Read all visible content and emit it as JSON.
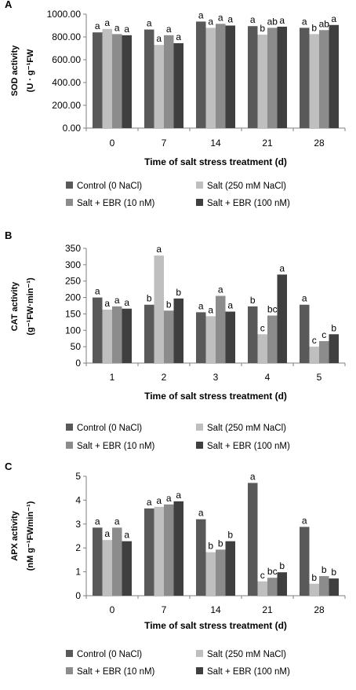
{
  "colors": {
    "control": "#595959",
    "salt": "#bfbfbf",
    "ebr10": "#8c8c8c",
    "ebr100": "#3f3f3f",
    "axis": "#7f7f7f"
  },
  "legend": [
    {
      "label": "Control (0 NaCl)",
      "color": "#595959"
    },
    {
      "label": "Salt (250 mM NaCl)",
      "color": "#bfbfbf"
    },
    {
      "label": "Salt + EBR (10 nM)",
      "color": "#8c8c8c"
    },
    {
      "label": "Salt + EBR (100 nM)",
      "color": "#3f3f3f"
    }
  ],
  "chart_data": [
    {
      "panel": "A",
      "type": "bar",
      "ylabel_line1": "SOD activity",
      "ylabel_line2": "(U · g⁻¹FW",
      "xlabel": "Time of salt stress treatment (d)",
      "categories": [
        "0",
        "7",
        "14",
        "21",
        "28"
      ],
      "ylim": [
        0,
        1000
      ],
      "yticks": [
        "0.00",
        "200.00",
        "400.00",
        "600.00",
        "800.00",
        "1000.00"
      ],
      "grid": false,
      "series": [
        {
          "name": "Control (0 NaCl)",
          "values": [
            840,
            865,
            935,
            895,
            880
          ],
          "letters": [
            "a",
            "a",
            "a",
            "a",
            "a"
          ]
        },
        {
          "name": "Salt (250 mM NaCl)",
          "values": [
            870,
            730,
            880,
            820,
            825
          ],
          "letters": [
            "a",
            "a",
            "a",
            "b",
            "b"
          ]
        },
        {
          "name": "Salt + EBR (10 nM)",
          "values": [
            825,
            815,
            915,
            880,
            860
          ],
          "letters": [
            "a",
            "a",
            "a",
            "ab",
            "ab"
          ]
        },
        {
          "name": "Salt + EBR (100 nM)",
          "values": [
            815,
            745,
            900,
            890,
            905
          ],
          "letters": [
            "a",
            "a",
            "a",
            "a",
            "a"
          ]
        }
      ]
    },
    {
      "panel": "B",
      "type": "bar",
      "ylabel_line1": "CAT activity",
      "ylabel_line2": "(g⁻¹FW·min⁻¹)",
      "xlabel": "Time of salt stress treatment (d)",
      "categories": [
        "1",
        "2",
        "3",
        "4",
        "5"
      ],
      "ylim": [
        0,
        350
      ],
      "yticks": [
        "0",
        "50",
        "100",
        "150",
        "200",
        "250",
        "300",
        "350"
      ],
      "grid": false,
      "series": [
        {
          "name": "Control (0 NaCl)",
          "values": [
            200,
            178,
            155,
            173,
            178
          ],
          "letters": [
            "a",
            "b",
            "a",
            "b",
            "a"
          ]
        },
        {
          "name": "Salt (250 mM NaCl)",
          "values": [
            163,
            328,
            143,
            88,
            50
          ],
          "letters": [
            "a",
            "a",
            "a",
            "c",
            "c"
          ]
        },
        {
          "name": "Salt + EBR (10 nM)",
          "values": [
            173,
            160,
            205,
            145,
            67
          ],
          "letters": [
            "a",
            "b",
            "a",
            "bc",
            "c"
          ]
        },
        {
          "name": "Salt + EBR (100 nM)",
          "values": [
            166,
            197,
            157,
            270,
            88
          ],
          "letters": [
            "a",
            "b",
            "a",
            "a",
            "b"
          ]
        }
      ]
    },
    {
      "panel": "C",
      "type": "bar",
      "ylabel_line1": "APX activity",
      "ylabel_line2": "(nM g⁻¹FWmin⁻¹)",
      "xlabel": "Time of salt stress treatment (d)",
      "categories": [
        "0",
        "7",
        "14",
        "21",
        "28"
      ],
      "ylim": [
        0,
        5
      ],
      "yticks": [
        "0",
        "1",
        "2",
        "3",
        "4",
        "5"
      ],
      "grid": false,
      "series": [
        {
          "name": "Control (0 NaCl)",
          "values": [
            2.85,
            3.65,
            3.2,
            4.72,
            2.88
          ],
          "letters": [
            "a",
            "a",
            "a",
            "a",
            "a"
          ]
        },
        {
          "name": "Salt (250 mM NaCl)",
          "values": [
            2.33,
            3.72,
            1.82,
            0.6,
            0.5
          ],
          "letters": [
            "a",
            "a",
            "b",
            "c",
            "b"
          ]
        },
        {
          "name": "Salt + EBR (10 nM)",
          "values": [
            2.85,
            3.82,
            1.93,
            0.75,
            0.82
          ],
          "letters": [
            "a",
            "a",
            "b",
            "bc",
            "b"
          ]
        },
        {
          "name": "Salt + EBR (100 nM)",
          "values": [
            2.28,
            3.95,
            2.28,
            0.98,
            0.72
          ],
          "letters": [
            "a",
            "a",
            "b",
            "b",
            "b"
          ]
        }
      ]
    }
  ],
  "panels": {
    "A": {
      "label": "A"
    },
    "B": {
      "label": "B"
    },
    "C": {
      "label": "C"
    }
  }
}
